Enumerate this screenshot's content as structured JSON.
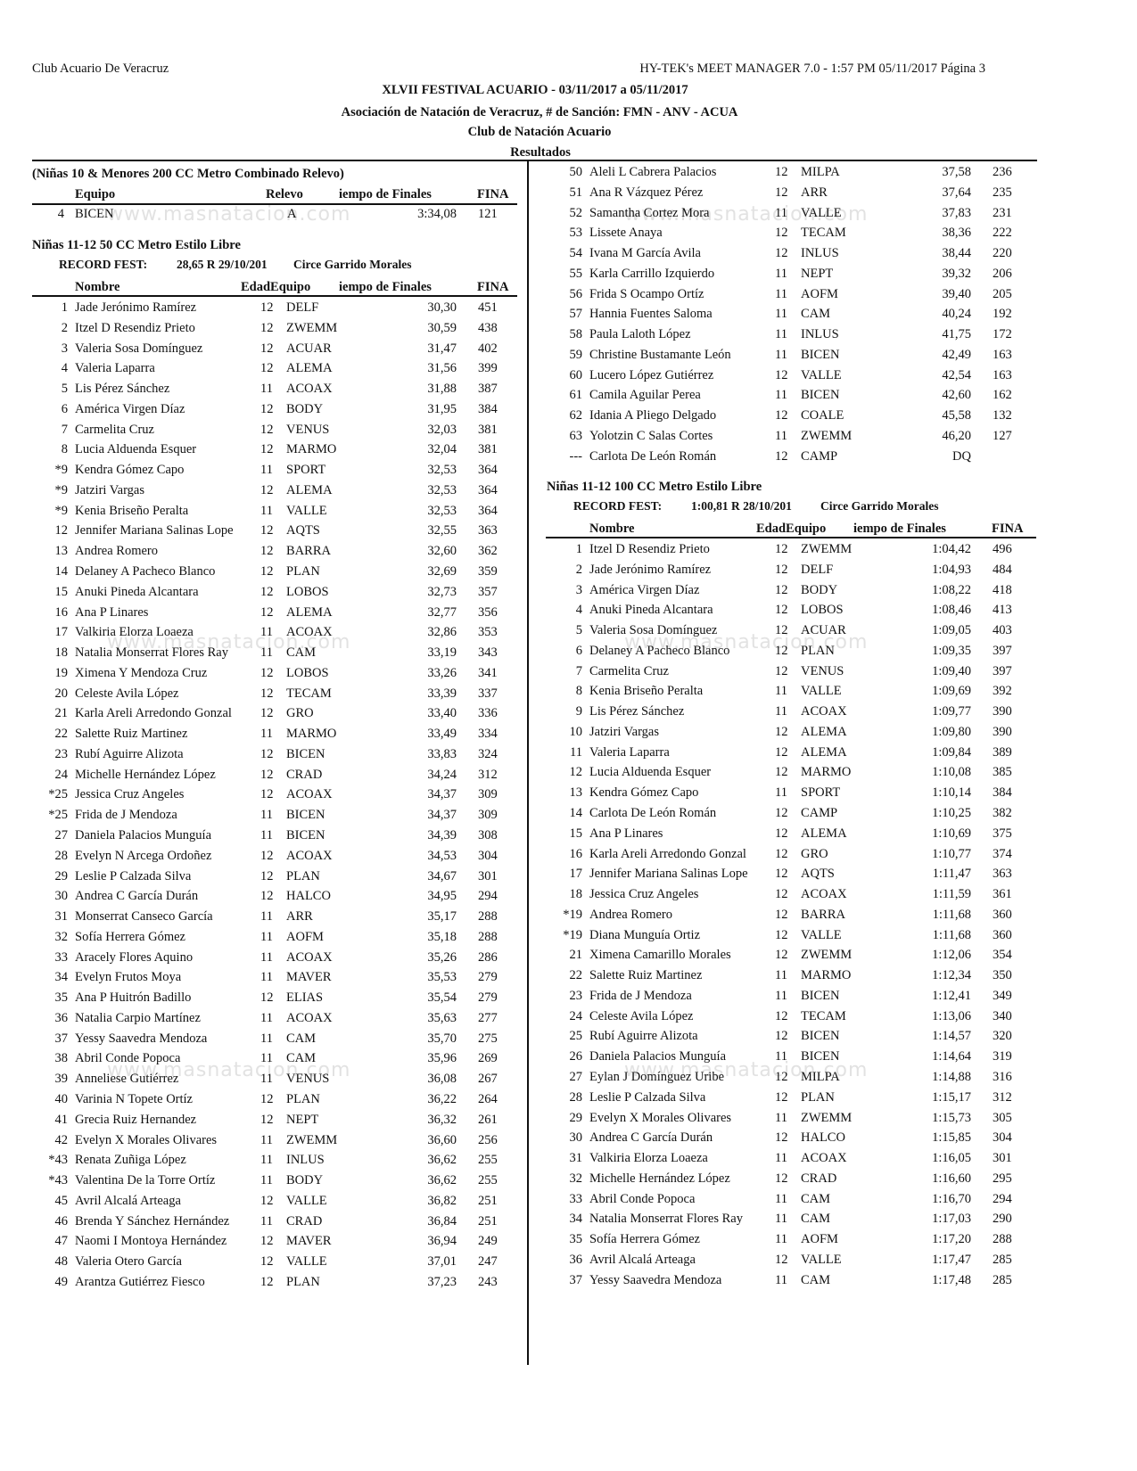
{
  "header": {
    "club": "Club Acuario De Veracruz",
    "software": "HY-TEK's MEET MANAGER 7.0 - 1:57 PM  05/11/2017  Página 3",
    "meet": "XLVII  FESTIVAL ACUARIO - 03/11/2017 a 05/11/2017",
    "association": "Asociación de Natación de Veracruz, # de Sanción: FMN - ANV - ACUA",
    "host": "Club de Natación Acuario",
    "section": "Resultados"
  },
  "watermark": "www.masnatacion.com",
  "relay": {
    "title": "(Niñas 10 & Menores 200 CC Metro Combinado Relevo)",
    "columns": {
      "team": "Equipo",
      "relay": "Relevo",
      "time": "iempo de Finales",
      "fina": "FINA"
    },
    "row": {
      "place": "4",
      "team": "BICEN",
      "relay": "A",
      "time": "3:34,08",
      "fina": "121"
    }
  },
  "event50": {
    "title": "Niñas 11-12 50 CC Metro Estilo Libre",
    "record_label": "RECORD FEST:",
    "record": "28,65  R  29/10/201",
    "record_holder": "Circe Garrido Morales",
    "columns": {
      "name": "Nombre",
      "ageteam": "EdadEquipo",
      "time": "iempo de Finales",
      "fina": "FINA"
    },
    "rows": [
      [
        "1",
        "Jade Jerónimo Ramírez",
        "12",
        "DELF",
        "30,30",
        "451"
      ],
      [
        "2",
        "Itzel D Resendiz Prieto",
        "12",
        "ZWEMM",
        "30,59",
        "438"
      ],
      [
        "3",
        "Valeria Sosa Domínguez",
        "12",
        "ACUAR",
        "31,47",
        "402"
      ],
      [
        "4",
        "Valeria Laparra",
        "12",
        "ALEMA",
        "31,56",
        "399"
      ],
      [
        "5",
        "Lis Pérez Sánchez",
        "11",
        "ACOAX",
        "31,88",
        "387"
      ],
      [
        "6",
        "América Virgen Díaz",
        "12",
        "BODY",
        "31,95",
        "384"
      ],
      [
        "7",
        "Carmelita Cruz",
        "12",
        "VENUS",
        "32,03",
        "381"
      ],
      [
        "8",
        "Lucia Alduenda Esquer",
        "12",
        "MARMO",
        "32,04",
        "381"
      ],
      [
        "*9",
        "Kendra Gómez Capo",
        "11",
        "SPORT",
        "32,53",
        "364"
      ],
      [
        "*9",
        "Jatziri Vargas",
        "12",
        "ALEMA",
        "32,53",
        "364"
      ],
      [
        "*9",
        "Kenia Briseño Peralta",
        "11",
        "VALLE",
        "32,53",
        "364"
      ],
      [
        "12",
        "Jennifer Mariana Salinas Lope",
        "12",
        "AQTS",
        "32,55",
        "363"
      ],
      [
        "13",
        "Andrea Romero",
        "12",
        "BARRA",
        "32,60",
        "362"
      ],
      [
        "14",
        "Delaney A Pacheco Blanco",
        "12",
        "PLAN",
        "32,69",
        "359"
      ],
      [
        "15",
        "Anuki Pineda Alcantara",
        "12",
        "LOBOS",
        "32,73",
        "357"
      ],
      [
        "16",
        "Ana P Linares",
        "12",
        "ALEMA",
        "32,77",
        "356"
      ],
      [
        "17",
        "Valkiria Elorza Loaeza",
        "11",
        "ACOAX",
        "32,86",
        "353"
      ],
      [
        "18",
        "Natalia Monserrat Flores Ray",
        "11",
        "CAM",
        "33,19",
        "343"
      ],
      [
        "19",
        "Ximena Y Mendoza Cruz",
        "12",
        "LOBOS",
        "33,26",
        "341"
      ],
      [
        "20",
        "Celeste Avila López",
        "12",
        "TECAM",
        "33,39",
        "337"
      ],
      [
        "21",
        "Karla Areli Arredondo Gonzal",
        "12",
        "GRO",
        "33,40",
        "336"
      ],
      [
        "22",
        "Salette Ruiz Martinez",
        "11",
        "MARMO",
        "33,49",
        "334"
      ],
      [
        "23",
        "Rubí Aguirre Alizota",
        "12",
        "BICEN",
        "33,83",
        "324"
      ],
      [
        "24",
        "Michelle Hernández López",
        "12",
        "CRAD",
        "34,24",
        "312"
      ],
      [
        "*25",
        "Jessica Cruz Angeles",
        "12",
        "ACOAX",
        "34,37",
        "309"
      ],
      [
        "*25",
        "Frida de J Mendoza",
        "11",
        "BICEN",
        "34,37",
        "309"
      ],
      [
        "27",
        "Daniela Palacios Munguía",
        "11",
        "BICEN",
        "34,39",
        "308"
      ],
      [
        "28",
        "Evelyn N Arcega Ordoñez",
        "12",
        "ACOAX",
        "34,53",
        "304"
      ],
      [
        "29",
        "Leslie P Calzada Silva",
        "12",
        "PLAN",
        "34,67",
        "301"
      ],
      [
        "30",
        "Andrea C García Durán",
        "12",
        "HALCO",
        "34,95",
        "294"
      ],
      [
        "31",
        "Monserrat Canseco García",
        "11",
        "ARR",
        "35,17",
        "288"
      ],
      [
        "32",
        "Sofía Herrera Gómez",
        "11",
        "AOFM",
        "35,18",
        "288"
      ],
      [
        "33",
        "Aracely Flores Aquino",
        "11",
        "ACOAX",
        "35,26",
        "286"
      ],
      [
        "34",
        "Evelyn Frutos Moya",
        "11",
        "MAVER",
        "35,53",
        "279"
      ],
      [
        "35",
        "Ana P Huitrón Badillo",
        "12",
        "ELIAS",
        "35,54",
        "279"
      ],
      [
        "36",
        "Natalia Carpio Martínez",
        "11",
        "ACOAX",
        "35,63",
        "277"
      ],
      [
        "37",
        "Yessy Saavedra Mendoza",
        "11",
        "CAM",
        "35,70",
        "275"
      ],
      [
        "38",
        "Abril Conde Popoca",
        "11",
        "CAM",
        "35,96",
        "269"
      ],
      [
        "39",
        "Anneliese Gutiérrez",
        "11",
        "VENUS",
        "36,08",
        "267"
      ],
      [
        "40",
        "Varinia N Topete Ortíz",
        "12",
        "PLAN",
        "36,22",
        "264"
      ],
      [
        "41",
        "Grecia Ruiz Hernandez",
        "12",
        "NEPT",
        "36,32",
        "261"
      ],
      [
        "42",
        "Evelyn X Morales Olivares",
        "11",
        "ZWEMM",
        "36,60",
        "256"
      ],
      [
        "*43",
        "Renata Zuñiga López",
        "11",
        "INLUS",
        "36,62",
        "255"
      ],
      [
        "*43",
        "Valentina De la Torre Ortíz",
        "11",
        "BODY",
        "36,62",
        "255"
      ],
      [
        "45",
        "Avril Alcalá Arteaga",
        "12",
        "VALLE",
        "36,82",
        "251"
      ],
      [
        "46",
        "Brenda Y Sánchez Hernández",
        "11",
        "CRAD",
        "36,84",
        "251"
      ],
      [
        "47",
        "Naomi I Montoya Hernández",
        "12",
        "MAVER",
        "36,94",
        "249"
      ],
      [
        "48",
        "Valeria Otero García",
        "12",
        "VALLE",
        "37,01",
        "247"
      ],
      [
        "49",
        "Arantza Gutiérrez Fiesco",
        "12",
        "PLAN",
        "37,23",
        "243"
      ],
      [
        "50",
        "Aleli L Cabrera Palacios",
        "12",
        "MILPA",
        "37,58",
        "236"
      ],
      [
        "51",
        "Ana R Vázquez Pérez",
        "12",
        "ARR",
        "37,64",
        "235"
      ],
      [
        "52",
        "Samantha Cortez Mora",
        "11",
        "VALLE",
        "37,83",
        "231"
      ],
      [
        "53",
        "Lissete Anaya",
        "12",
        "TECAM",
        "38,36",
        "222"
      ],
      [
        "54",
        "Ivana M García Avila",
        "12",
        "INLUS",
        "38,44",
        "220"
      ],
      [
        "55",
        "Karla Carrillo Izquierdo",
        "11",
        "NEPT",
        "39,32",
        "206"
      ],
      [
        "56",
        "Frida S Ocampo Ortíz",
        "11",
        "AOFM",
        "39,40",
        "205"
      ],
      [
        "57",
        "Hannia Fuentes Saloma",
        "11",
        "CAM",
        "40,24",
        "192"
      ],
      [
        "58",
        "Paula Laloth López",
        "11",
        "INLUS",
        "41,75",
        "172"
      ],
      [
        "59",
        "Christine Bustamante León",
        "11",
        "BICEN",
        "42,49",
        "163"
      ],
      [
        "60",
        "Lucero López Gutiérrez",
        "12",
        "VALLE",
        "42,54",
        "163"
      ],
      [
        "61",
        "Camila Aguilar Perea",
        "11",
        "BICEN",
        "42,60",
        "162"
      ],
      [
        "62",
        "Idania A Pliego Delgado",
        "12",
        "COALE",
        "45,58",
        "132"
      ],
      [
        "63",
        "Yolotzin C Salas Cortes",
        "11",
        "ZWEMM",
        "46,20",
        "127"
      ],
      [
        "---",
        "Carlota De León Román",
        "12",
        "CAMP",
        "DQ",
        ""
      ]
    ]
  },
  "event100": {
    "title": "Niñas 11-12 100 CC Metro Estilo Libre",
    "record_label": "RECORD FEST:",
    "record": "1:00,81  R  28/10/201",
    "record_holder": "Circe Garrido Morales",
    "columns": {
      "name": "Nombre",
      "ageteam": "EdadEquipo",
      "time": "iempo de Finales",
      "fina": "FINA"
    },
    "rows": [
      [
        "1",
        "Itzel D Resendiz Prieto",
        "12",
        "ZWEMM",
        "1:04,42",
        "496"
      ],
      [
        "2",
        "Jade Jerónimo Ramírez",
        "12",
        "DELF",
        "1:04,93",
        "484"
      ],
      [
        "3",
        "América Virgen Díaz",
        "12",
        "BODY",
        "1:08,22",
        "418"
      ],
      [
        "4",
        "Anuki Pineda Alcantara",
        "12",
        "LOBOS",
        "1:08,46",
        "413"
      ],
      [
        "5",
        "Valeria Sosa Domínguez",
        "12",
        "ACUAR",
        "1:09,05",
        "403"
      ],
      [
        "6",
        "Delaney A Pacheco Blanco",
        "12",
        "PLAN",
        "1:09,35",
        "397"
      ],
      [
        "7",
        "Carmelita Cruz",
        "12",
        "VENUS",
        "1:09,40",
        "397"
      ],
      [
        "8",
        "Kenia Briseño Peralta",
        "11",
        "VALLE",
        "1:09,69",
        "392"
      ],
      [
        "9",
        "Lis Pérez Sánchez",
        "11",
        "ACOAX",
        "1:09,77",
        "390"
      ],
      [
        "10",
        "Jatziri Vargas",
        "12",
        "ALEMA",
        "1:09,80",
        "390"
      ],
      [
        "11",
        "Valeria Laparra",
        "12",
        "ALEMA",
        "1:09,84",
        "389"
      ],
      [
        "12",
        "Lucia Alduenda Esquer",
        "12",
        "MARMO",
        "1:10,08",
        "385"
      ],
      [
        "13",
        "Kendra Gómez Capo",
        "11",
        "SPORT",
        "1:10,14",
        "384"
      ],
      [
        "14",
        "Carlota De León Román",
        "12",
        "CAMP",
        "1:10,25",
        "382"
      ],
      [
        "15",
        "Ana P Linares",
        "12",
        "ALEMA",
        "1:10,69",
        "375"
      ],
      [
        "16",
        "Karla Areli Arredondo Gonzal",
        "12",
        "GRO",
        "1:10,77",
        "374"
      ],
      [
        "17",
        "Jennifer Mariana Salinas Lope",
        "12",
        "AQTS",
        "1:11,47",
        "363"
      ],
      [
        "18",
        "Jessica Cruz Angeles",
        "12",
        "ACOAX",
        "1:11,59",
        "361"
      ],
      [
        "*19",
        "Andrea Romero",
        "12",
        "BARRA",
        "1:11,68",
        "360"
      ],
      [
        "*19",
        "Diana Munguía Ortiz",
        "12",
        "VALLE",
        "1:11,68",
        "360"
      ],
      [
        "21",
        "Ximena Camarillo Morales",
        "12",
        "ZWEMM",
        "1:12,06",
        "354"
      ],
      [
        "22",
        "Salette Ruiz Martinez",
        "11",
        "MARMO",
        "1:12,34",
        "350"
      ],
      [
        "23",
        "Frida de J Mendoza",
        "11",
        "BICEN",
        "1:12,41",
        "349"
      ],
      [
        "24",
        "Celeste Avila López",
        "12",
        "TECAM",
        "1:13,06",
        "340"
      ],
      [
        "25",
        "Rubí Aguirre Alizota",
        "12",
        "BICEN",
        "1:14,57",
        "320"
      ],
      [
        "26",
        "Daniela Palacios Munguía",
        "11",
        "BICEN",
        "1:14,64",
        "319"
      ],
      [
        "27",
        "Eylan J Domínguez Uribe",
        "12",
        "MILPA",
        "1:14,88",
        "316"
      ],
      [
        "28",
        "Leslie P Calzada Silva",
        "12",
        "PLAN",
        "1:15,17",
        "312"
      ],
      [
        "29",
        "Evelyn X Morales Olivares",
        "11",
        "ZWEMM",
        "1:15,73",
        "305"
      ],
      [
        "30",
        "Andrea C García Durán",
        "12",
        "HALCO",
        "1:15,85",
        "304"
      ],
      [
        "31",
        "Valkiria Elorza Loaeza",
        "11",
        "ACOAX",
        "1:16,05",
        "301"
      ],
      [
        "32",
        "Michelle Hernández López",
        "12",
        "CRAD",
        "1:16,60",
        "295"
      ],
      [
        "33",
        "Abril Conde Popoca",
        "11",
        "CAM",
        "1:16,70",
        "294"
      ],
      [
        "34",
        "Natalia Monserrat Flores Ray",
        "11",
        "CAM",
        "1:17,03",
        "290"
      ],
      [
        "35",
        "Sofía Herrera Gómez",
        "11",
        "AOFM",
        "1:17,20",
        "288"
      ],
      [
        "36",
        "Avril Alcalá Arteaga",
        "12",
        "VALLE",
        "1:17,47",
        "285"
      ],
      [
        "37",
        "Yessy Saavedra Mendoza",
        "11",
        "CAM",
        "1:17,48",
        "285"
      ]
    ]
  }
}
